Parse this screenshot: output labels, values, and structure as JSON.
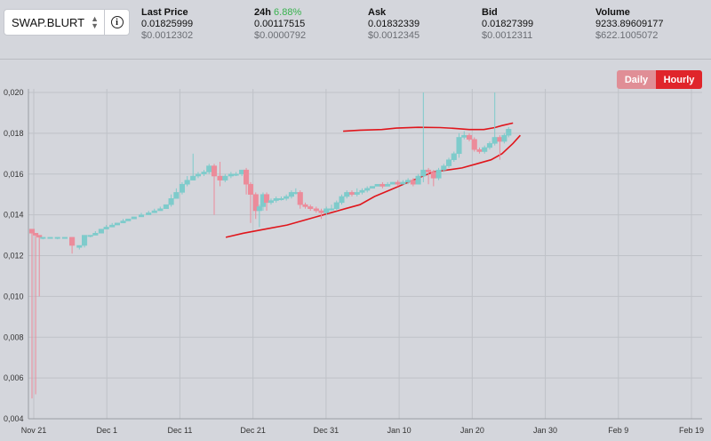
{
  "symbol": {
    "selected": "SWAP.BLURT"
  },
  "stats": [
    {
      "label": "Last Price",
      "value": "0.01825999",
      "usd": "$0.0012302"
    },
    {
      "label": "24h",
      "label_extra": "6.88%",
      "value": "0.00117515",
      "usd": "$0.0000792"
    },
    {
      "label": "Ask",
      "value": "0.01832339",
      "usd": "$0.0012345"
    },
    {
      "label": "Bid",
      "value": "0.01827399",
      "usd": "$0.0012311"
    },
    {
      "label": "Volume",
      "value": "9233.89609177",
      "usd": "$622.1005072"
    }
  ],
  "interval": {
    "daily_label": "Daily",
    "hourly_label": "Hourly",
    "active": "Hourly"
  },
  "colors": {
    "up": "#7ecbcb",
    "down": "#ec8b9a",
    "band": "#e0161c",
    "positive": "#37b24d"
  },
  "chart_data": {
    "type": "candlestick",
    "ylim": [
      0.004,
      0.02
    ],
    "y_ticks": [
      "0,020",
      "0,018",
      "0,016",
      "0,014",
      "0,012",
      "0,010",
      "0,008",
      "0,006",
      "0,004"
    ],
    "x_ticks": [
      "Nov 21",
      "Dec 1",
      "Dec 11",
      "Dec 21",
      "Dec 31",
      "Jan 10",
      "Jan 20",
      "Jan 30",
      "Feb 9",
      "Feb 19"
    ],
    "candles": [
      {
        "x": 0.0,
        "o": 0.0133,
        "c": 0.0131,
        "h": 0.0133,
        "l": 0.005
      },
      {
        "x": 0.5,
        "o": 0.0131,
        "c": 0.013,
        "h": 0.0131,
        "l": 0.0052
      },
      {
        "x": 1.0,
        "o": 0.013,
        "c": 0.0129,
        "h": 0.013,
        "l": 0.01
      },
      {
        "x": 1.5,
        "o": 0.0129,
        "c": 0.0129,
        "h": 0.0129,
        "l": 0.0128
      },
      {
        "x": 2.5,
        "o": 0.0129,
        "c": 0.0129,
        "h": 0.0129,
        "l": 0.0129
      },
      {
        "x": 3.5,
        "o": 0.0129,
        "c": 0.0129,
        "h": 0.0129,
        "l": 0.0128
      },
      {
        "x": 4.5,
        "o": 0.0129,
        "c": 0.0129,
        "h": 0.0129,
        "l": 0.0129
      },
      {
        "x": 5.5,
        "o": 0.0129,
        "c": 0.0125,
        "h": 0.0129,
        "l": 0.0121
      },
      {
        "x": 6.5,
        "o": 0.0124,
        "c": 0.0125,
        "h": 0.0125,
        "l": 0.0123
      },
      {
        "x": 7.2,
        "o": 0.0125,
        "c": 0.013,
        "h": 0.013,
        "l": 0.0124
      },
      {
        "x": 8.0,
        "o": 0.013,
        "c": 0.013,
        "h": 0.013,
        "l": 0.0129
      },
      {
        "x": 8.7,
        "o": 0.013,
        "c": 0.0131,
        "h": 0.0132,
        "l": 0.013
      },
      {
        "x": 9.5,
        "o": 0.0131,
        "c": 0.0133,
        "h": 0.0133,
        "l": 0.0131
      },
      {
        "x": 10.2,
        "o": 0.0133,
        "c": 0.0134,
        "h": 0.0135,
        "l": 0.0133
      },
      {
        "x": 11.0,
        "o": 0.0134,
        "c": 0.0135,
        "h": 0.0136,
        "l": 0.0134
      },
      {
        "x": 11.7,
        "o": 0.0135,
        "c": 0.0136,
        "h": 0.0136,
        "l": 0.0135
      },
      {
        "x": 12.5,
        "o": 0.0136,
        "c": 0.0137,
        "h": 0.0138,
        "l": 0.0136
      },
      {
        "x": 13.2,
        "o": 0.0137,
        "c": 0.0138,
        "h": 0.0138,
        "l": 0.0137
      },
      {
        "x": 14.0,
        "o": 0.0138,
        "c": 0.0139,
        "h": 0.0139,
        "l": 0.0138
      },
      {
        "x": 15.0,
        "o": 0.0139,
        "c": 0.014,
        "h": 0.0141,
        "l": 0.0139
      },
      {
        "x": 16.0,
        "o": 0.014,
        "c": 0.0141,
        "h": 0.0142,
        "l": 0.014
      },
      {
        "x": 16.8,
        "o": 0.0141,
        "c": 0.0142,
        "h": 0.0143,
        "l": 0.0141
      },
      {
        "x": 17.6,
        "o": 0.0142,
        "c": 0.0143,
        "h": 0.0144,
        "l": 0.0142
      },
      {
        "x": 18.4,
        "o": 0.0143,
        "c": 0.0145,
        "h": 0.0145,
        "l": 0.0143
      },
      {
        "x": 19.1,
        "o": 0.0145,
        "c": 0.0148,
        "h": 0.015,
        "l": 0.0144
      },
      {
        "x": 19.8,
        "o": 0.0148,
        "c": 0.0151,
        "h": 0.0153,
        "l": 0.0148
      },
      {
        "x": 20.6,
        "o": 0.0151,
        "c": 0.0155,
        "h": 0.0156,
        "l": 0.015
      },
      {
        "x": 21.3,
        "o": 0.0155,
        "c": 0.0157,
        "h": 0.0159,
        "l": 0.0154
      },
      {
        "x": 22.1,
        "o": 0.0157,
        "c": 0.0159,
        "h": 0.017,
        "l": 0.0157
      },
      {
        "x": 22.8,
        "o": 0.0159,
        "c": 0.016,
        "h": 0.0161,
        "l": 0.0158
      },
      {
        "x": 23.6,
        "o": 0.016,
        "c": 0.0161,
        "h": 0.0162,
        "l": 0.0159
      },
      {
        "x": 24.3,
        "o": 0.0161,
        "c": 0.0164,
        "h": 0.0165,
        "l": 0.016
      },
      {
        "x": 25.0,
        "o": 0.0164,
        "c": 0.0159,
        "h": 0.0165,
        "l": 0.014
      },
      {
        "x": 25.8,
        "o": 0.0159,
        "c": 0.0157,
        "h": 0.0166,
        "l": 0.0154
      },
      {
        "x": 26.5,
        "o": 0.0157,
        "c": 0.0159,
        "h": 0.016,
        "l": 0.0156
      },
      {
        "x": 27.3,
        "o": 0.0159,
        "c": 0.016,
        "h": 0.0161,
        "l": 0.0158
      },
      {
        "x": 28.0,
        "o": 0.016,
        "c": 0.016,
        "h": 0.0161,
        "l": 0.0159
      },
      {
        "x": 28.8,
        "o": 0.016,
        "c": 0.0162,
        "h": 0.0162,
        "l": 0.0159
      },
      {
        "x": 29.4,
        "o": 0.0162,
        "c": 0.0155,
        "h": 0.0163,
        "l": 0.015
      },
      {
        "x": 30.0,
        "o": 0.0155,
        "c": 0.015,
        "h": 0.0156,
        "l": 0.0136
      },
      {
        "x": 30.7,
        "o": 0.015,
        "c": 0.0142,
        "h": 0.0151,
        "l": 0.0138
      },
      {
        "x": 31.2,
        "o": 0.0142,
        "c": 0.0144,
        "h": 0.0145,
        "l": 0.0134
      },
      {
        "x": 31.7,
        "o": 0.0144,
        "c": 0.015,
        "h": 0.0151,
        "l": 0.0142
      },
      {
        "x": 32.2,
        "o": 0.015,
        "c": 0.0146,
        "h": 0.0151,
        "l": 0.0142
      },
      {
        "x": 32.8,
        "o": 0.0146,
        "c": 0.0147,
        "h": 0.0148,
        "l": 0.0145
      },
      {
        "x": 33.5,
        "o": 0.0147,
        "c": 0.0148,
        "h": 0.0149,
        "l": 0.0146
      },
      {
        "x": 34.2,
        "o": 0.0148,
        "c": 0.0148,
        "h": 0.0149,
        "l": 0.0147
      },
      {
        "x": 34.9,
        "o": 0.0148,
        "c": 0.0149,
        "h": 0.015,
        "l": 0.0147
      },
      {
        "x": 35.6,
        "o": 0.0149,
        "c": 0.0151,
        "h": 0.0152,
        "l": 0.0148
      },
      {
        "x": 36.2,
        "o": 0.0151,
        "c": 0.0151,
        "h": 0.0153,
        "l": 0.015
      },
      {
        "x": 36.8,
        "o": 0.0151,
        "c": 0.0145,
        "h": 0.0152,
        "l": 0.0143
      },
      {
        "x": 37.5,
        "o": 0.0145,
        "c": 0.0144,
        "h": 0.0146,
        "l": 0.0143
      },
      {
        "x": 38.2,
        "o": 0.0144,
        "c": 0.0143,
        "h": 0.0145,
        "l": 0.0142
      },
      {
        "x": 39.0,
        "o": 0.0143,
        "c": 0.0142,
        "h": 0.0144,
        "l": 0.0141
      },
      {
        "x": 39.7,
        "o": 0.0142,
        "c": 0.0141,
        "h": 0.0143,
        "l": 0.0138
      },
      {
        "x": 40.4,
        "o": 0.0141,
        "c": 0.0143,
        "h": 0.0144,
        "l": 0.014
      },
      {
        "x": 41.1,
        "o": 0.0143,
        "c": 0.0143,
        "h": 0.0145,
        "l": 0.0142
      },
      {
        "x": 41.8,
        "o": 0.0143,
        "c": 0.0146,
        "h": 0.0147,
        "l": 0.0142
      },
      {
        "x": 42.5,
        "o": 0.0146,
        "c": 0.0149,
        "h": 0.015,
        "l": 0.0145
      },
      {
        "x": 43.2,
        "o": 0.0149,
        "c": 0.0151,
        "h": 0.0152,
        "l": 0.0148
      },
      {
        "x": 43.9,
        "o": 0.0151,
        "c": 0.015,
        "h": 0.0152,
        "l": 0.0149
      },
      {
        "x": 44.6,
        "o": 0.015,
        "c": 0.0151,
        "h": 0.0153,
        "l": 0.0149
      },
      {
        "x": 45.3,
        "o": 0.0151,
        "c": 0.0152,
        "h": 0.0153,
        "l": 0.015
      },
      {
        "x": 46.0,
        "o": 0.0152,
        "c": 0.0153,
        "h": 0.0154,
        "l": 0.0151
      },
      {
        "x": 46.7,
        "o": 0.0153,
        "c": 0.0154,
        "h": 0.0154,
        "l": 0.0153
      },
      {
        "x": 47.4,
        "o": 0.0154,
        "c": 0.0155,
        "h": 0.0155,
        "l": 0.0154
      },
      {
        "x": 48.1,
        "o": 0.0155,
        "c": 0.0154,
        "h": 0.0156,
        "l": 0.0153
      },
      {
        "x": 48.8,
        "o": 0.0154,
        "c": 0.0155,
        "h": 0.0156,
        "l": 0.0154
      },
      {
        "x": 49.5,
        "o": 0.0155,
        "c": 0.0156,
        "h": 0.0156,
        "l": 0.0155
      },
      {
        "x": 50.2,
        "o": 0.0156,
        "c": 0.0155,
        "h": 0.0157,
        "l": 0.0154
      },
      {
        "x": 50.9,
        "o": 0.0155,
        "c": 0.0156,
        "h": 0.0157,
        "l": 0.0155
      },
      {
        "x": 51.6,
        "o": 0.0156,
        "c": 0.0157,
        "h": 0.0158,
        "l": 0.0155
      },
      {
        "x": 52.3,
        "o": 0.0157,
        "c": 0.0155,
        "h": 0.0158,
        "l": 0.0154
      },
      {
        "x": 53.0,
        "o": 0.0155,
        "c": 0.0159,
        "h": 0.016,
        "l": 0.0155
      },
      {
        "x": 53.7,
        "o": 0.0159,
        "c": 0.0162,
        "h": 0.02,
        "l": 0.0156
      },
      {
        "x": 54.4,
        "o": 0.0162,
        "c": 0.0161,
        "h": 0.0163,
        "l": 0.0155
      },
      {
        "x": 55.1,
        "o": 0.0161,
        "c": 0.0158,
        "h": 0.0162,
        "l": 0.0154
      },
      {
        "x": 55.8,
        "o": 0.0158,
        "c": 0.0162,
        "h": 0.0163,
        "l": 0.0157
      },
      {
        "x": 56.5,
        "o": 0.0162,
        "c": 0.0164,
        "h": 0.0165,
        "l": 0.0161
      },
      {
        "x": 57.2,
        "o": 0.0164,
        "c": 0.0167,
        "h": 0.0168,
        "l": 0.0163
      },
      {
        "x": 57.9,
        "o": 0.0167,
        "c": 0.017,
        "h": 0.0171,
        "l": 0.0166
      },
      {
        "x": 58.6,
        "o": 0.017,
        "c": 0.0178,
        "h": 0.018,
        "l": 0.0168
      },
      {
        "x": 59.3,
        "o": 0.0178,
        "c": 0.0179,
        "h": 0.0181,
        "l": 0.0177
      },
      {
        "x": 60.0,
        "o": 0.0179,
        "c": 0.0177,
        "h": 0.018,
        "l": 0.0176
      },
      {
        "x": 60.7,
        "o": 0.0177,
        "c": 0.0172,
        "h": 0.0178,
        "l": 0.0171
      },
      {
        "x": 61.4,
        "o": 0.0172,
        "c": 0.0171,
        "h": 0.0173,
        "l": 0.017
      },
      {
        "x": 62.1,
        "o": 0.0171,
        "c": 0.0173,
        "h": 0.0174,
        "l": 0.017
      },
      {
        "x": 62.8,
        "o": 0.0173,
        "c": 0.0175,
        "h": 0.0176,
        "l": 0.0172
      },
      {
        "x": 63.5,
        "o": 0.0175,
        "c": 0.0178,
        "h": 0.02,
        "l": 0.0174
      },
      {
        "x": 64.2,
        "o": 0.0178,
        "c": 0.0176,
        "h": 0.0179,
        "l": 0.0167
      },
      {
        "x": 64.8,
        "o": 0.0176,
        "c": 0.0179,
        "h": 0.018,
        "l": 0.0175
      },
      {
        "x": 65.4,
        "o": 0.0179,
        "c": 0.0182,
        "h": 0.0183,
        "l": 0.0178
      }
    ],
    "upper_band": [
      [
        42.7,
        0.0181
      ],
      [
        45.0,
        0.01815
      ],
      [
        48.0,
        0.01818
      ],
      [
        50.0,
        0.01825
      ],
      [
        53.0,
        0.01829
      ],
      [
        56.0,
        0.01828
      ],
      [
        58.0,
        0.01824
      ],
      [
        60.0,
        0.01818
      ],
      [
        62.0,
        0.01818
      ],
      [
        63.5,
        0.01828
      ],
      [
        64.5,
        0.01838
      ],
      [
        66.0,
        0.0185
      ]
    ],
    "lower_band": [
      [
        26.6,
        0.0129
      ],
      [
        29.0,
        0.0131
      ],
      [
        32.0,
        0.0133
      ],
      [
        35.0,
        0.0135
      ],
      [
        37.0,
        0.0137
      ],
      [
        39.0,
        0.0139
      ],
      [
        41.0,
        0.0141
      ],
      [
        43.0,
        0.0143
      ],
      [
        45.0,
        0.0145
      ],
      [
        47.0,
        0.0149
      ],
      [
        49.0,
        0.0152
      ],
      [
        51.0,
        0.0155
      ],
      [
        53.0,
        0.0158
      ],
      [
        55.0,
        0.0161
      ],
      [
        57.0,
        0.0162
      ],
      [
        59.0,
        0.0163
      ],
      [
        61.0,
        0.0165
      ],
      [
        63.0,
        0.0167
      ],
      [
        64.5,
        0.017
      ],
      [
        66.0,
        0.0175
      ],
      [
        67.0,
        0.0179
      ]
    ]
  }
}
